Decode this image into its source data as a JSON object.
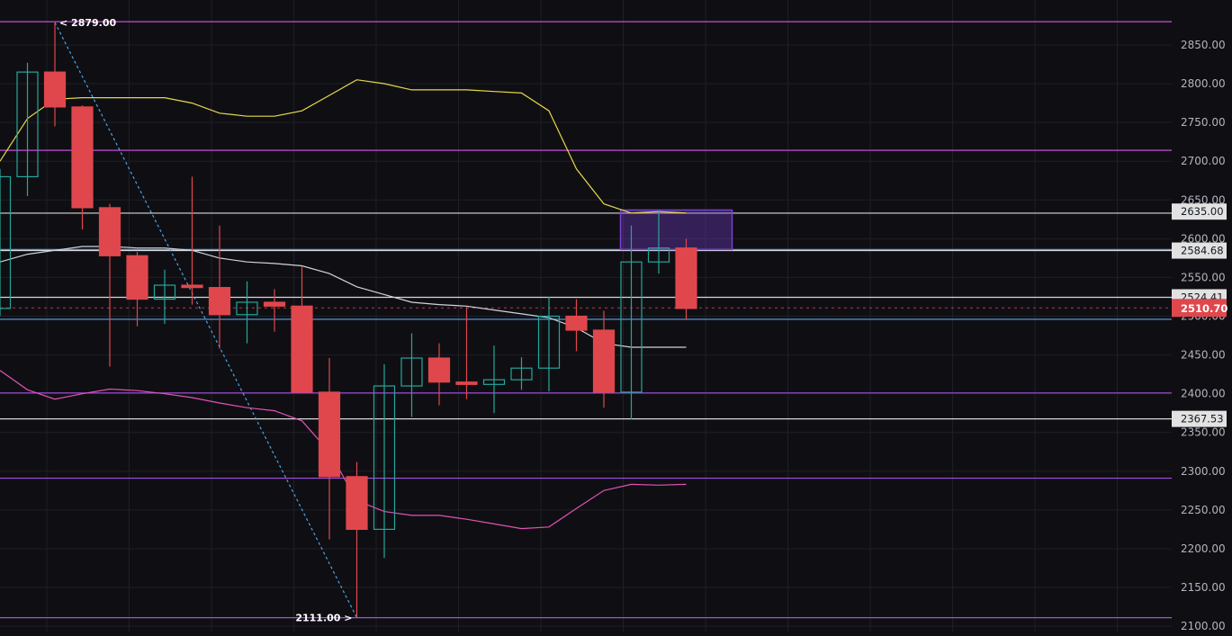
{
  "chart_data": {
    "type": "candlestick",
    "y_axis": {
      "side": "right",
      "range": [
        2092,
        2908
      ],
      "ticks": [
        2100,
        2150,
        2200,
        2250,
        2300,
        2350,
        2400,
        2450,
        2500,
        2550,
        2600,
        2650,
        2700,
        2750,
        2800,
        2850
      ],
      "tick_labels": [
        "2100.00",
        "2150.00",
        "2200.00",
        "2250.00",
        "2300.00",
        "2350.00",
        "2400.00",
        "2450.00",
        "2500.00",
        "2550.00",
        "2600.00",
        "2650.00",
        "2700.00",
        "2750.00",
        "2800.00",
        "2850.00"
      ]
    },
    "grid": true,
    "colors": {
      "background": "#0f0f13",
      "grid": "#1e1f26",
      "up": "#26a69a",
      "down": "#e0474c",
      "upper_band": "#e6d94a",
      "middle_band": "#d1d4dc",
      "lower_band": "#e052b5",
      "support_resistance_purple": "#a24fe0",
      "support_resistance_white": "#d9d9d9",
      "level_blue": "#5ba4e6",
      "trendline": "#4aa3e8",
      "zone": "#7b3fd4"
    },
    "candles": [
      {
        "o": 2510,
        "h": 2690,
        "l": 2500,
        "c": 2680
      },
      {
        "o": 2680,
        "h": 2827,
        "l": 2655,
        "c": 2815
      },
      {
        "o": 2815,
        "h": 2879,
        "l": 2745,
        "c": 2770
      },
      {
        "o": 2770,
        "h": 2772,
        "l": 2612,
        "c": 2640
      },
      {
        "o": 2640,
        "h": 2645,
        "l": 2435,
        "c": 2578
      },
      {
        "o": 2578,
        "h": 2583,
        "l": 2487,
        "c": 2522
      },
      {
        "o": 2522,
        "h": 2560,
        "l": 2490,
        "c": 2540
      },
      {
        "o": 2540,
        "h": 2680,
        "l": 2515,
        "c": 2537
      },
      {
        "o": 2537,
        "h": 2617,
        "l": 2458,
        "c": 2502
      },
      {
        "o": 2502,
        "h": 2545,
        "l": 2465,
        "c": 2518
      },
      {
        "o": 2518,
        "h": 2535,
        "l": 2480,
        "c": 2513
      },
      {
        "o": 2513,
        "h": 2564,
        "l": 2410,
        "c": 2402
      },
      {
        "o": 2402,
        "h": 2446,
        "l": 2212,
        "c": 2293
      },
      {
        "o": 2293,
        "h": 2312,
        "l": 2111,
        "c": 2225
      },
      {
        "o": 2225,
        "h": 2438,
        "l": 2188,
        "c": 2410
      },
      {
        "o": 2410,
        "h": 2478,
        "l": 2370,
        "c": 2446
      },
      {
        "o": 2446,
        "h": 2465,
        "l": 2385,
        "c": 2415
      },
      {
        "o": 2415,
        "h": 2512,
        "l": 2393,
        "c": 2412
      },
      {
        "o": 2412,
        "h": 2462,
        "l": 2375,
        "c": 2418
      },
      {
        "o": 2418,
        "h": 2447,
        "l": 2405,
        "c": 2433
      },
      {
        "o": 2433,
        "h": 2525,
        "l": 2403,
        "c": 2500
      },
      {
        "o": 2500,
        "h": 2522,
        "l": 2455,
        "c": 2482
      },
      {
        "o": 2482,
        "h": 2507,
        "l": 2382,
        "c": 2402
      },
      {
        "o": 2402,
        "h": 2617,
        "l": 2367,
        "c": 2570
      },
      {
        "o": 2570,
        "h": 2635,
        "l": 2555,
        "c": 2588
      },
      {
        "o": 2588,
        "h": 2600,
        "l": 2495,
        "c": 2510
      }
    ],
    "candle_spacing_bars": 1,
    "upper_band": [
      2700,
      2755,
      2780,
      2782,
      2782,
      2782,
      2782,
      2775,
      2762,
      2758,
      2758,
      2765,
      2785,
      2805,
      2800,
      2792,
      2792,
      2792,
      2790,
      2788,
      2765,
      2690,
      2645,
      2633,
      2635,
      2633
    ],
    "middle_band": [
      2570,
      2580,
      2585,
      2590,
      2590,
      2588,
      2588,
      2585,
      2575,
      2570,
      2568,
      2565,
      2555,
      2538,
      2528,
      2518,
      2515,
      2513,
      2508,
      2503,
      2498,
      2485,
      2465,
      2460,
      2460,
      2460
    ],
    "lower_band": [
      2430,
      2405,
      2393,
      2400,
      2406,
      2404,
      2400,
      2395,
      2388,
      2382,
      2378,
      2365,
      2325,
      2262,
      2248,
      2243,
      2243,
      2238,
      2232,
      2226,
      2228,
      2252,
      2275,
      2283,
      2282,
      2283
    ],
    "horizontal_levels": [
      {
        "price": 2880,
        "color": "#c54fd8"
      },
      {
        "price": 2714,
        "color": "#c54fd8"
      },
      {
        "price": 2633,
        "color": "#d9d9d9"
      },
      {
        "price": 2586,
        "color": "#5ba4e6"
      },
      {
        "price": 2584.68,
        "color": "#d9d9d9"
      },
      {
        "price": 2524.41,
        "color": "#d9d9d9"
      },
      {
        "price": 2496,
        "color": "#5ba4e6"
      },
      {
        "price": 2401,
        "color": "#a24fe0"
      },
      {
        "price": 2367.53,
        "color": "#d9d9d9"
      },
      {
        "price": 2291,
        "color": "#a24fe0"
      },
      {
        "price": 2111,
        "color": "#a24fe0"
      }
    ],
    "current_price": {
      "price": 2510.7,
      "label": "2510.70",
      "color": "#e0474c"
    },
    "price_tags": [
      {
        "price": 2635.0,
        "label": "2635.00"
      },
      {
        "price": 2584.68,
        "label": "2584.68"
      },
      {
        "price": 2524.41,
        "label": "2524.41"
      },
      {
        "price": 2367.53,
        "label": "2367.53"
      }
    ],
    "annotations": [
      {
        "label": "2879.00",
        "price": 2879,
        "at_bar": 2,
        "arrow": "<"
      },
      {
        "label": "2111.00",
        "price": 2111,
        "at_bar": 13,
        "arrow": ">"
      }
    ],
    "trendline": {
      "from": {
        "bar": 2,
        "price": 2879
      },
      "to": {
        "bar": 13,
        "price": 2111
      }
    },
    "zone": {
      "from_bar": 23,
      "to_bar": 27,
      "top": 2637,
      "bottom": 2586
    }
  }
}
